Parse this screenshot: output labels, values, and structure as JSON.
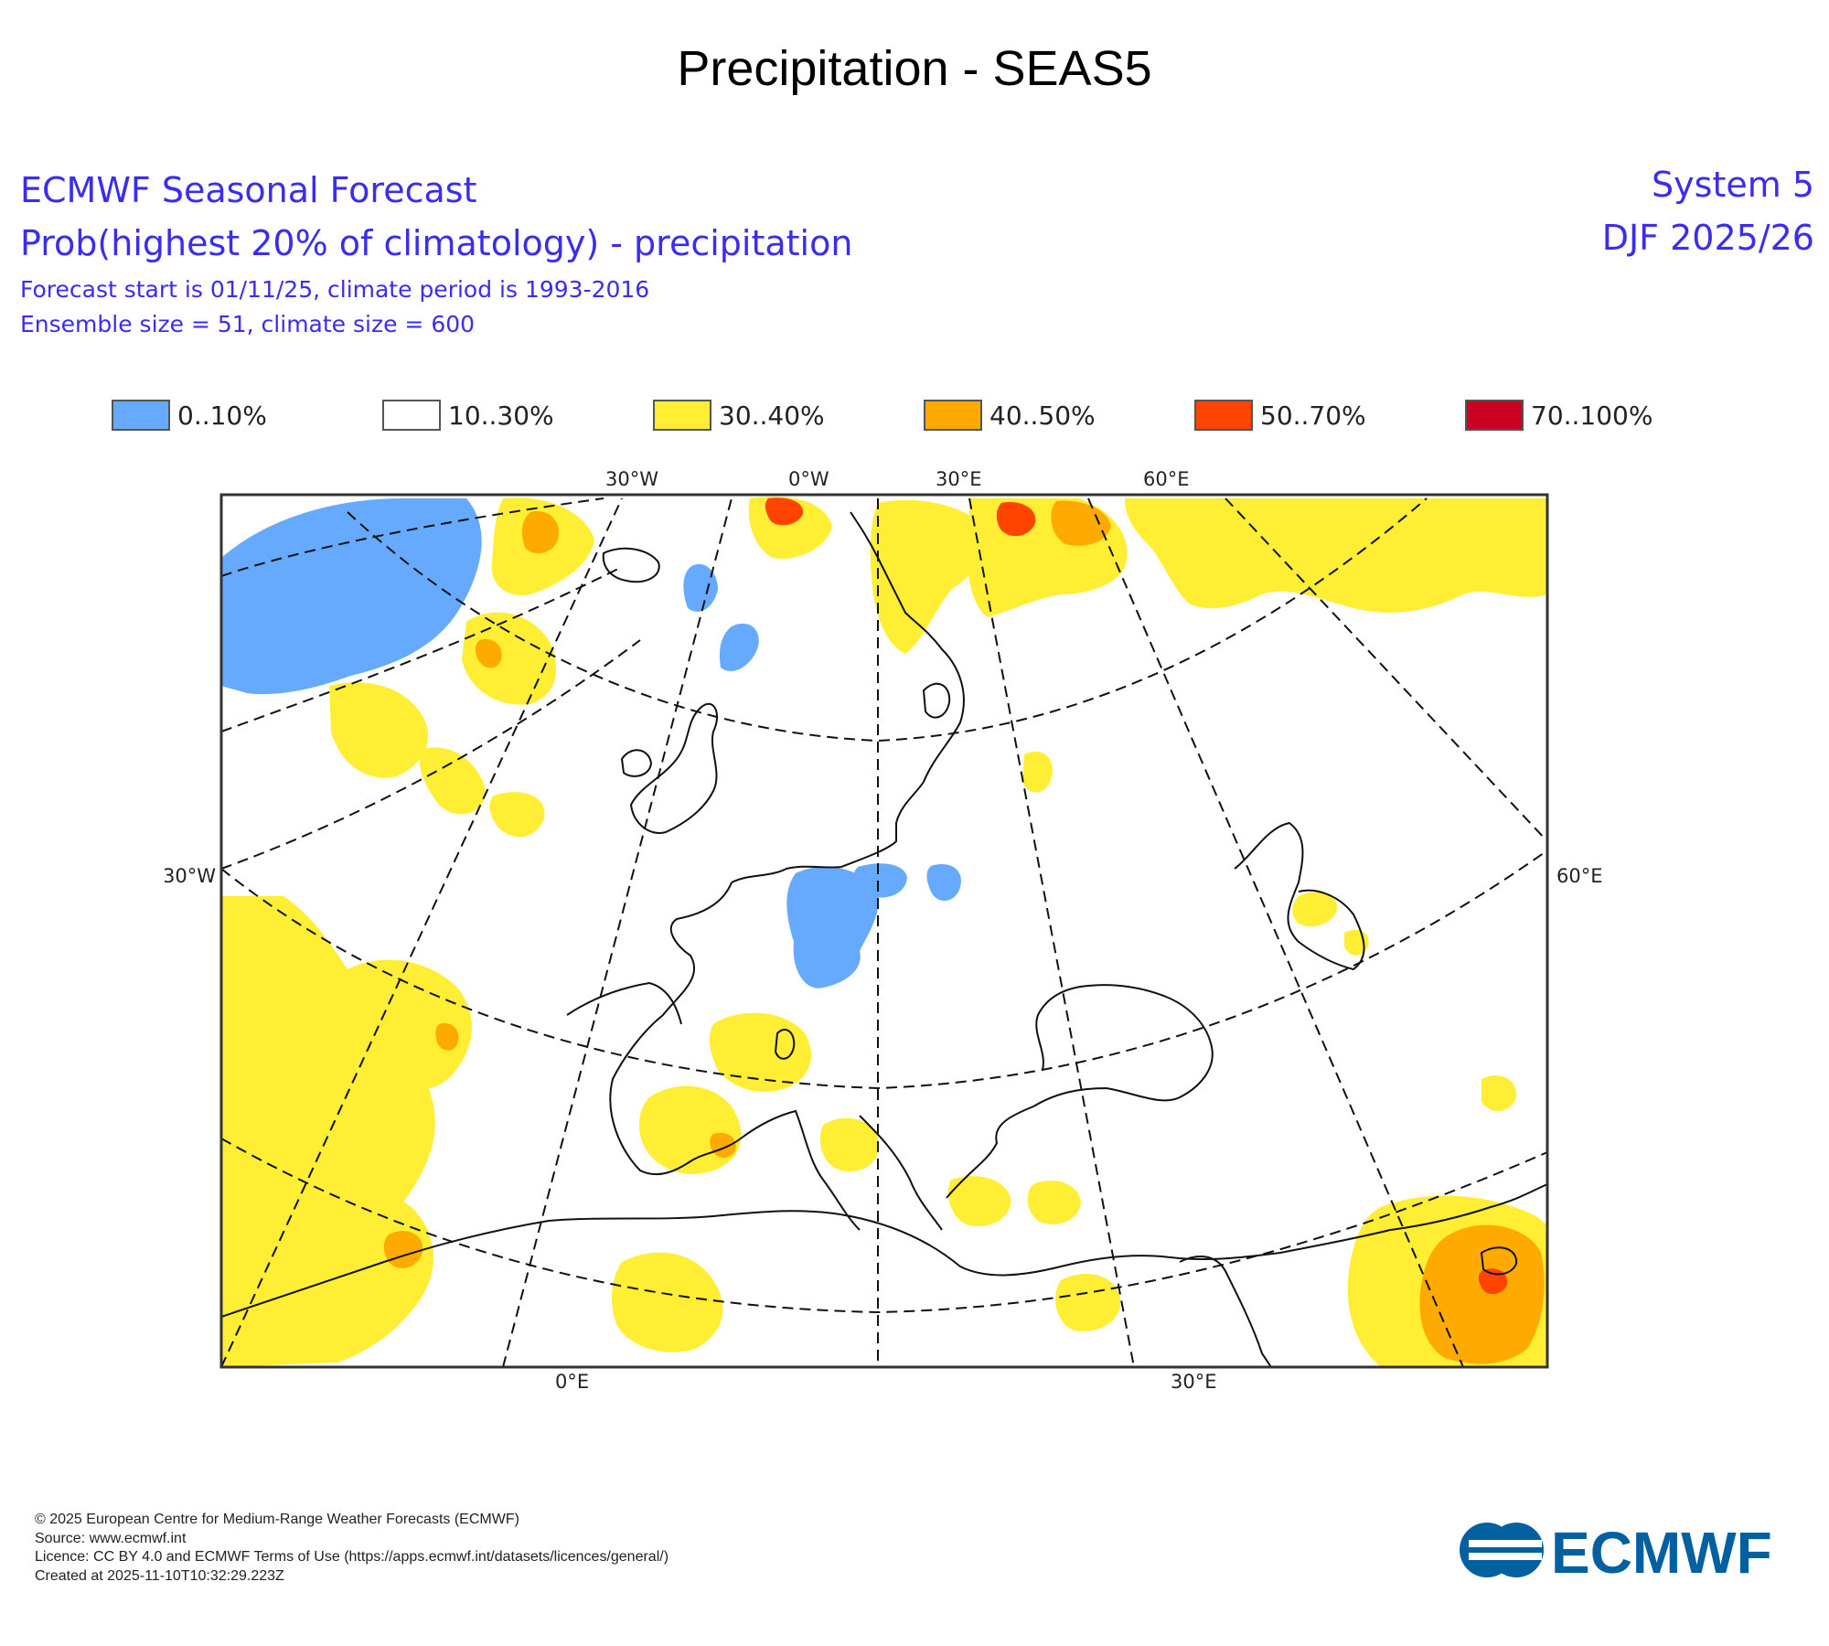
{
  "title": "Precipitation - SEAS5",
  "header": {
    "line1": "ECMWF Seasonal Forecast",
    "line2": "Prob(highest 20% of climatology) - precipitation",
    "line3": "Forecast start is 01/11/25, climate period is 1993-2016",
    "line4": "Ensemble size = 51, climate size = 600",
    "system": "System 5",
    "season": "DJF 2025/26"
  },
  "legend": [
    {
      "label": "0..10%",
      "color": "#66aaff"
    },
    {
      "label": "10..30%",
      "color": "#ffffff"
    },
    {
      "label": "30..40%",
      "color": "#ffee33"
    },
    {
      "label": "40..50%",
      "color": "#ffaa00"
    },
    {
      "label": "50..70%",
      "color": "#ff4400"
    },
    {
      "label": "70..100%",
      "color": "#cc0022"
    }
  ],
  "axis_labels": {
    "top": [
      "30°W",
      "0°W",
      "30°E",
      "60°E"
    ],
    "left": "30°W",
    "right": "60°E",
    "bottom": [
      "0°E",
      "30°E"
    ]
  },
  "footer": [
    "© 2025 European Centre for Medium-Range Weather Forecasts (ECMWF)",
    "Source: www.ecmwf.int",
    "Licence: CC BY 4.0 and ECMWF Terms of Use (https://apps.ecmwf.int/datasets/licences/general/)",
    "Created at 2025-11-10T10:32:29.223Z"
  ],
  "logo": {
    "text": "ECMWF",
    "color": "#0060a0"
  }
}
